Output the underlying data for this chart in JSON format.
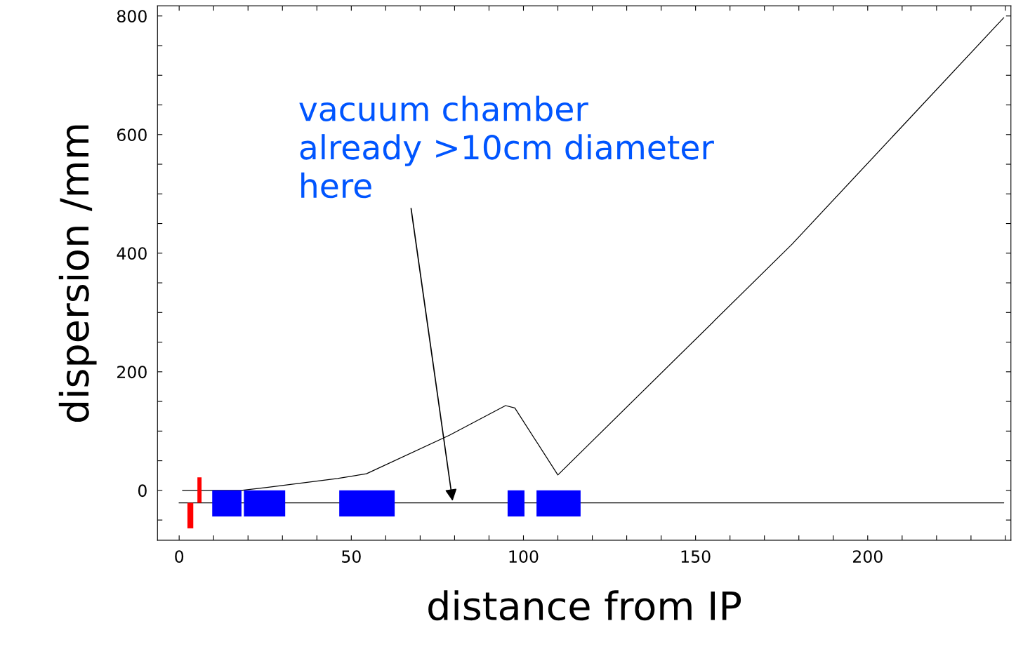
{
  "chart_data": {
    "type": "line",
    "xlabel": "distance from IP",
    "ylabel": "dispersion /mm",
    "xlim": [
      -6.3,
      241.6
    ],
    "ylim": [
      -84,
      817
    ],
    "xticks": [
      0,
      {
        "value": 10,
        "label": null
      },
      {
        "value": 20,
        "label": null
      },
      {
        "value": 30,
        "label": null
      },
      {
        "value": 40,
        "label": null
      },
      50,
      {
        "value": 60,
        "label": null
      },
      {
        "value": 70,
        "label": null
      },
      {
        "value": 80,
        "label": null
      },
      {
        "value": 90,
        "label": null
      },
      100,
      {
        "value": 110,
        "label": null
      },
      {
        "value": 120,
        "label": null
      },
      {
        "value": 130,
        "label": null
      },
      {
        "value": 140,
        "label": null
      },
      150,
      {
        "value": 160,
        "label": null
      },
      {
        "value": 170,
        "label": null
      },
      {
        "value": 180,
        "label": null
      },
      {
        "value": 190,
        "label": null
      },
      200,
      {
        "value": 210,
        "label": null
      },
      {
        "value": 220,
        "label": null
      },
      {
        "value": 230,
        "label": null
      },
      {
        "value": 240,
        "label": null
      }
    ],
    "yticks": [
      {
        "value": -50,
        "label": null
      },
      0,
      {
        "value": 50,
        "label": null
      },
      {
        "value": 100,
        "label": null
      },
      {
        "value": 150,
        "label": null
      },
      200,
      {
        "value": 250,
        "label": null
      },
      {
        "value": 300,
        "label": null
      },
      {
        "value": 350,
        "label": null
      },
      400,
      {
        "value": 450,
        "label": null
      },
      {
        "value": 500,
        "label": null
      },
      {
        "value": 550,
        "label": null
      },
      600,
      {
        "value": 650,
        "label": null
      },
      {
        "value": 700,
        "label": null
      },
      {
        "value": 750,
        "label": null
      },
      800
    ],
    "grid": false,
    "marker": "none",
    "line_style": "solid",
    "series": [
      {
        "color": "#000000",
        "x": [
          1,
          18,
          25.5,
          46,
          54.4,
          78.5,
          94.8,
          97.5,
          110,
          178,
          239.5
        ],
        "values": [
          0,
          0,
          5,
          20,
          28,
          93,
          143,
          139,
          26,
          415,
          797
        ]
      },
      {
        "color": "#000000",
        "x": [
          0,
          239.5
        ],
        "values": [
          -21,
          -21
        ]
      },
      {
        "type": "area",
        "color": "#0000ff",
        "x": [
          9.6,
          9.6,
          18.1,
          18.1,
          18.8,
          18.8,
          30.8,
          30.8,
          46.5,
          46.5,
          62.6,
          62.6,
          95.4,
          95.4,
          100.3,
          100.3,
          103.8,
          103.8,
          116.6,
          116.6
        ],
        "values": [
          0,
          -44,
          -44,
          0,
          0,
          -44,
          -44,
          0,
          0,
          -44,
          -44,
          0,
          0,
          -44,
          -44,
          0,
          0,
          -44,
          -44,
          0
        ]
      }
    ],
    "annotations": [
      {
        "text": "vacuum chamber\nalready >10cm diameter\nhere",
        "x": 79.5,
        "y": -21
      }
    ]
  }
}
